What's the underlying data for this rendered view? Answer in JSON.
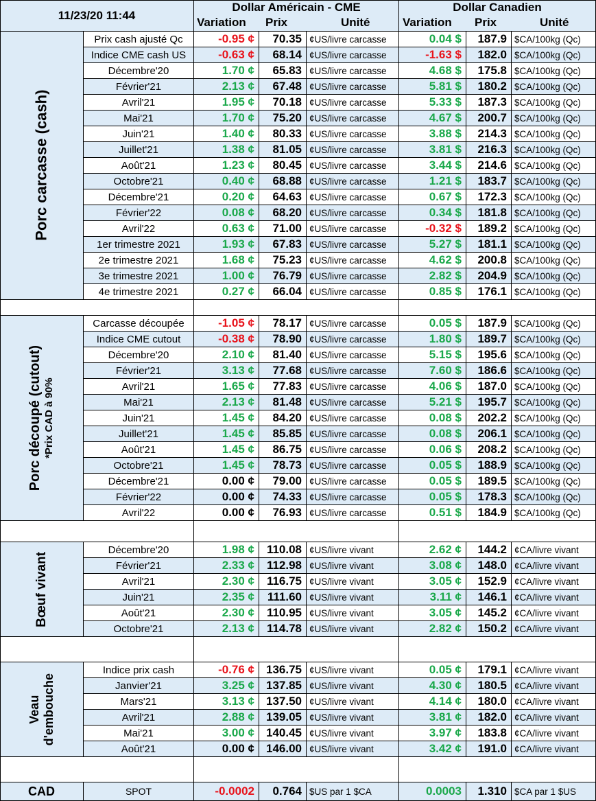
{
  "header": {
    "timestamp": "11/23/20 11:44",
    "usd_title": "Dollar Américain - CME",
    "cad_title": "Dollar Canadien",
    "col_variation": "Variation",
    "col_prix": "Prix",
    "col_unite": "Unité"
  },
  "sections": [
    {
      "category": "Porc carcasse (cash)",
      "rows": [
        {
          "label": "Prix cash ajusté Qc",
          "usd_var": "-0.95 ¢",
          "usd_price": "70.35",
          "usd_unit": "¢US/livre carcasse",
          "cad_var": "0.04 $",
          "cad_price": "187.9",
          "cad_unit": "$CA/100kg (Qc)"
        },
        {
          "label": "Indice CME cash US",
          "usd_var": "-0.63 ¢",
          "usd_price": "68.14",
          "usd_unit": "¢US/livre carcasse",
          "cad_var": "-1.63 $",
          "cad_price": "182.0",
          "cad_unit": "$CA/100kg (Qc)"
        },
        {
          "label": "Décembre'20",
          "usd_var": "1.70 ¢",
          "usd_price": "65.83",
          "usd_unit": "¢US/livre carcasse",
          "cad_var": "4.68 $",
          "cad_price": "175.8",
          "cad_unit": "$CA/100kg (Qc)"
        },
        {
          "label": "Février'21",
          "usd_var": "2.13 ¢",
          "usd_price": "67.48",
          "usd_unit": "¢US/livre carcasse",
          "cad_var": "5.81 $",
          "cad_price": "180.2",
          "cad_unit": "$CA/100kg (Qc)"
        },
        {
          "label": "Avril'21",
          "usd_var": "1.95 ¢",
          "usd_price": "70.18",
          "usd_unit": "¢US/livre carcasse",
          "cad_var": "5.33 $",
          "cad_price": "187.3",
          "cad_unit": "$CA/100kg (Qc)"
        },
        {
          "label": "Mai'21",
          "usd_var": "1.70 ¢",
          "usd_price": "75.20",
          "usd_unit": "¢US/livre carcasse",
          "cad_var": "4.67 $",
          "cad_price": "200.7",
          "cad_unit": "$CA/100kg (Qc)"
        },
        {
          "label": "Juin'21",
          "usd_var": "1.40 ¢",
          "usd_price": "80.33",
          "usd_unit": "¢US/livre carcasse",
          "cad_var": "3.88 $",
          "cad_price": "214.3",
          "cad_unit": "$CA/100kg (Qc)"
        },
        {
          "label": "Juillet'21",
          "usd_var": "1.38 ¢",
          "usd_price": "81.05",
          "usd_unit": "¢US/livre carcasse",
          "cad_var": "3.81 $",
          "cad_price": "216.3",
          "cad_unit": "$CA/100kg (Qc)"
        },
        {
          "label": "Août'21",
          "usd_var": "1.23 ¢",
          "usd_price": "80.45",
          "usd_unit": "¢US/livre carcasse",
          "cad_var": "3.44 $",
          "cad_price": "214.6",
          "cad_unit": "$CA/100kg (Qc)"
        },
        {
          "label": "Octobre'21",
          "usd_var": "0.40 ¢",
          "usd_price": "68.88",
          "usd_unit": "¢US/livre carcasse",
          "cad_var": "1.21 $",
          "cad_price": "183.7",
          "cad_unit": "$CA/100kg (Qc)"
        },
        {
          "label": "Décembre'21",
          "usd_var": "0.20 ¢",
          "usd_price": "64.63",
          "usd_unit": "¢US/livre carcasse",
          "cad_var": "0.67 $",
          "cad_price": "172.3",
          "cad_unit": "$CA/100kg (Qc)"
        },
        {
          "label": "Février'22",
          "usd_var": "0.08 ¢",
          "usd_price": "68.20",
          "usd_unit": "¢US/livre carcasse",
          "cad_var": "0.34 $",
          "cad_price": "181.8",
          "cad_unit": "$CA/100kg (Qc)"
        },
        {
          "label": "Avril'22",
          "usd_var": "0.63 ¢",
          "usd_price": "71.00",
          "usd_unit": "¢US/livre carcasse",
          "cad_var": "-0.32 $",
          "cad_price": "189.2",
          "cad_unit": "$CA/100kg (Qc)"
        },
        {
          "label": "1er trimestre 2021",
          "usd_var": "1.93 ¢",
          "usd_price": "67.83",
          "usd_unit": "¢US/livre carcasse",
          "cad_var": "5.27 $",
          "cad_price": "181.1",
          "cad_unit": "$CA/100kg (Qc)"
        },
        {
          "label": "2e trimestre 2021",
          "usd_var": "1.68 ¢",
          "usd_price": "75.23",
          "usd_unit": "¢US/livre carcasse",
          "cad_var": "4.62 $",
          "cad_price": "200.8",
          "cad_unit": "$CA/100kg (Qc)"
        },
        {
          "label": "3e trimestre 2021",
          "usd_var": "1.00 ¢",
          "usd_price": "76.79",
          "usd_unit": "¢US/livre carcasse",
          "cad_var": "2.82 $",
          "cad_price": "204.9",
          "cad_unit": "$CA/100kg (Qc)"
        },
        {
          "label": "4e trimestre 2021",
          "usd_var": "0.27 ¢",
          "usd_price": "66.04",
          "usd_unit": "¢US/livre carcasse",
          "cad_var": "0.85 $",
          "cad_price": "176.1",
          "cad_unit": "$CA/100kg (Qc)"
        }
      ]
    },
    {
      "category": "Porc découpé (cutout)",
      "subcategory": "*Prix CAD à 90%",
      "rows": [
        {
          "label": "Carcasse découpée",
          "usd_var": "-1.05 ¢",
          "usd_price": "78.17",
          "usd_unit": "¢US/livre carcasse",
          "cad_var": "0.05 $",
          "cad_price": "187.9",
          "cad_unit": "$CA/100kg (Qc)"
        },
        {
          "label": "Indice CME cutout",
          "usd_var": "-0.38 ¢",
          "usd_price": "78.90",
          "usd_unit": "¢US/livre carcasse",
          "cad_var": "1.80 $",
          "cad_price": "189.7",
          "cad_unit": "$CA/100kg (Qc)"
        },
        {
          "label": "Décembre'20",
          "usd_var": "2.10 ¢",
          "usd_price": "81.40",
          "usd_unit": "¢US/livre carcasse",
          "cad_var": "5.15 $",
          "cad_price": "195.6",
          "cad_unit": "$CA/100kg (Qc)"
        },
        {
          "label": "Février'21",
          "usd_var": "3.13 ¢",
          "usd_price": "77.68",
          "usd_unit": "¢US/livre carcasse",
          "cad_var": "7.60 $",
          "cad_price": "186.6",
          "cad_unit": "$CA/100kg (Qc)"
        },
        {
          "label": "Avril'21",
          "usd_var": "1.65 ¢",
          "usd_price": "77.83",
          "usd_unit": "¢US/livre carcasse",
          "cad_var": "4.06 $",
          "cad_price": "187.0",
          "cad_unit": "$CA/100kg (Qc)"
        },
        {
          "label": "Mai'21",
          "usd_var": "2.13 ¢",
          "usd_price": "81.48",
          "usd_unit": "¢US/livre carcasse",
          "cad_var": "5.21 $",
          "cad_price": "195.7",
          "cad_unit": "$CA/100kg (Qc)"
        },
        {
          "label": "Juin'21",
          "usd_var": "1.45 ¢",
          "usd_price": "84.20",
          "usd_unit": "¢US/livre carcasse",
          "cad_var": "0.08 $",
          "cad_price": "202.2",
          "cad_unit": "$CA/100kg (Qc)"
        },
        {
          "label": "Juillet'21",
          "usd_var": "1.45 ¢",
          "usd_price": "85.85",
          "usd_unit": "¢US/livre carcasse",
          "cad_var": "0.08 $",
          "cad_price": "206.1",
          "cad_unit": "$CA/100kg (Qc)"
        },
        {
          "label": "Août'21",
          "usd_var": "1.45 ¢",
          "usd_price": "86.75",
          "usd_unit": "¢US/livre carcasse",
          "cad_var": "0.06 $",
          "cad_price": "208.2",
          "cad_unit": "$CA/100kg (Qc)"
        },
        {
          "label": "Octobre'21",
          "usd_var": "1.45 ¢",
          "usd_price": "78.73",
          "usd_unit": "¢US/livre carcasse",
          "cad_var": "0.05 $",
          "cad_price": "188.9",
          "cad_unit": "$CA/100kg (Qc)"
        },
        {
          "label": "Décembre'21",
          "usd_var": "0.00 ¢",
          "usd_price": "79.00",
          "usd_unit": "¢US/livre carcasse",
          "cad_var": "0.05 $",
          "cad_price": "189.5",
          "cad_unit": "$CA/100kg (Qc)"
        },
        {
          "label": "Février'22",
          "usd_var": "0.00 ¢",
          "usd_price": "74.33",
          "usd_unit": "¢US/livre carcasse",
          "cad_var": "0.05 $",
          "cad_price": "178.3",
          "cad_unit": "$CA/100kg (Qc)"
        },
        {
          "label": "Avril'22",
          "usd_var": "0.00 ¢",
          "usd_price": "76.93",
          "usd_unit": "¢US/livre carcasse",
          "cad_var": "0.51 $",
          "cad_price": "184.9",
          "cad_unit": "$CA/100kg (Qc)"
        }
      ]
    },
    {
      "category": "Bœuf vivant",
      "rows": [
        {
          "label": "Décembre'20",
          "usd_var": "1.98 ¢",
          "usd_price": "110.08",
          "usd_unit": "¢US/livre vivant",
          "cad_var": "2.62 ¢",
          "cad_price": "144.2",
          "cad_unit": "¢CA/livre vivant"
        },
        {
          "label": "Février'21",
          "usd_var": "2.33 ¢",
          "usd_price": "112.98",
          "usd_unit": "¢US/livre vivant",
          "cad_var": "3.08 ¢",
          "cad_price": "148.0",
          "cad_unit": "¢CA/livre vivant"
        },
        {
          "label": "Avril'21",
          "usd_var": "2.30 ¢",
          "usd_price": "116.75",
          "usd_unit": "¢US/livre vivant",
          "cad_var": "3.05 ¢",
          "cad_price": "152.9",
          "cad_unit": "¢CA/livre vivant"
        },
        {
          "label": "Juin'21",
          "usd_var": "2.35 ¢",
          "usd_price": "111.60",
          "usd_unit": "¢US/livre vivant",
          "cad_var": "3.11 ¢",
          "cad_price": "146.1",
          "cad_unit": "¢CA/livre vivant"
        },
        {
          "label": "Août'21",
          "usd_var": "2.30 ¢",
          "usd_price": "110.95",
          "usd_unit": "¢US/livre vivant",
          "cad_var": "3.05 ¢",
          "cad_price": "145.2",
          "cad_unit": "¢CA/livre vivant"
        },
        {
          "label": "Octobre'21",
          "usd_var": "2.13 ¢",
          "usd_price": "114.78",
          "usd_unit": "¢US/livre vivant",
          "cad_var": "2.82 ¢",
          "cad_price": "150.2",
          "cad_unit": "¢CA/livre vivant"
        }
      ]
    },
    {
      "category": "Veau",
      "subcategory": "d'embouche",
      "rows": [
        {
          "label": "Indice prix cash",
          "usd_var": "-0.76 ¢",
          "usd_price": "136.75",
          "usd_unit": "¢US/livre vivant",
          "cad_var": "0.05 ¢",
          "cad_price": "179.1",
          "cad_unit": "¢CA/livre vivant"
        },
        {
          "label": "Janvier'21",
          "usd_var": "3.25 ¢",
          "usd_price": "137.85",
          "usd_unit": "¢US/livre vivant",
          "cad_var": "4.30 ¢",
          "cad_price": "180.5",
          "cad_unit": "¢CA/livre vivant"
        },
        {
          "label": "Mars'21",
          "usd_var": "3.13 ¢",
          "usd_price": "137.50",
          "usd_unit": "¢US/livre vivant",
          "cad_var": "4.14 ¢",
          "cad_price": "180.0",
          "cad_unit": "¢CA/livre vivant"
        },
        {
          "label": "Avril'21",
          "usd_var": "2.88 ¢",
          "usd_price": "139.05",
          "usd_unit": "¢US/livre vivant",
          "cad_var": "3.81 ¢",
          "cad_price": "182.0",
          "cad_unit": "¢CA/livre vivant"
        },
        {
          "label": "Mai'21",
          "usd_var": "3.00 ¢",
          "usd_price": "140.45",
          "usd_unit": "¢US/livre vivant",
          "cad_var": "3.97 ¢",
          "cad_price": "183.8",
          "cad_unit": "¢CA/livre vivant"
        },
        {
          "label": "Août'21",
          "usd_var": "0.00 ¢",
          "usd_price": "146.00",
          "usd_unit": "¢US/livre vivant",
          "cad_var": "3.42 ¢",
          "cad_price": "191.0",
          "cad_unit": "¢CA/livre vivant"
        }
      ]
    }
  ],
  "cad_row": {
    "category": "CAD",
    "label": "SPOT",
    "usd_var": "-0.0002",
    "usd_price": "0.764",
    "usd_unit": "$US par 1 $CA",
    "cad_var": "0.0003",
    "cad_price": "1.310",
    "cad_unit": "$CA par 1 $US"
  },
  "colors": {
    "positive": "#1aa84a",
    "negative": "#e8131b",
    "zero": "#000000",
    "header_fill": "#ddebf7"
  }
}
